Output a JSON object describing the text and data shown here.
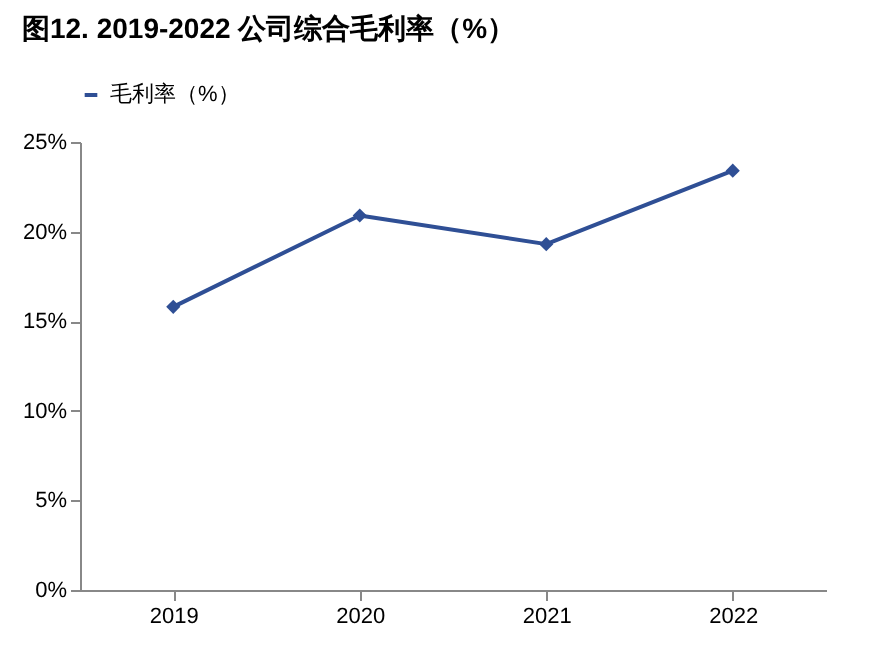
{
  "chart_data": {
    "type": "line",
    "title": "图12. 2019-2022 公司综合毛利率（%）",
    "categories": [
      "2019",
      "2020",
      "2021",
      "2022"
    ],
    "series": [
      {
        "name": "毛利率（%）",
        "color": "#2f4f95",
        "values": [
          15.8,
          20.9,
          19.3,
          23.4
        ]
      }
    ],
    "ylim": [
      0,
      25
    ],
    "yticks": [
      {
        "value": 0,
        "label": "0%"
      },
      {
        "value": 5,
        "label": "5%"
      },
      {
        "value": 10,
        "label": "10%"
      },
      {
        "value": 15,
        "label": "15%"
      },
      {
        "value": 20,
        "label": "20%"
      },
      {
        "value": 25,
        "label": "25%"
      }
    ],
    "grid": false,
    "legend": "top",
    "marker": "diamond",
    "line_style": "solid"
  }
}
